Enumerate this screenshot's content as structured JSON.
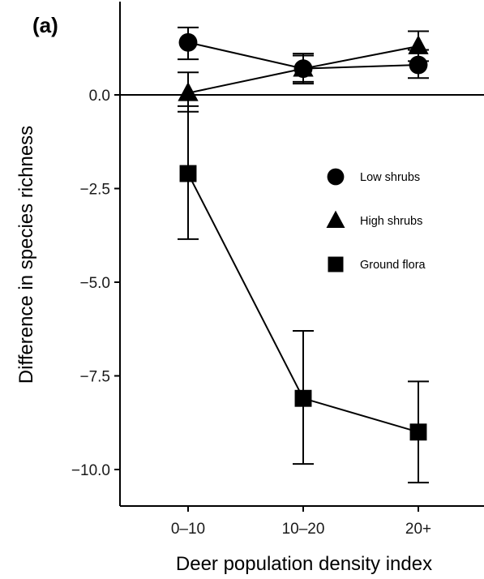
{
  "panel_label": "(a)",
  "chart_data": {
    "type": "line",
    "xlabel": "Deer population density index",
    "ylabel": "Difference in species richness",
    "categories": [
      "0–10",
      "10–20",
      "20+"
    ],
    "ylim": [
      -11.0,
      2.4
    ],
    "yticks": [
      0.0,
      -2.5,
      -5.0,
      -7.5,
      -10.0
    ],
    "ytick_labels": [
      "0.0",
      "−2.5",
      "−5.0",
      "−7.5",
      "−10.0"
    ],
    "reference_line_y": 0,
    "grid": false,
    "legend_position": "right",
    "series": [
      {
        "name": "Low shrubs",
        "marker": "circle",
        "values": [
          1.4,
          0.7,
          0.8
        ],
        "lower": [
          0.95,
          0.3,
          0.45
        ],
        "upper": [
          1.8,
          1.05,
          1.2
        ]
      },
      {
        "name": "High shrubs",
        "marker": "triangle",
        "values": [
          0.05,
          0.7,
          1.3
        ],
        "lower": [
          -0.45,
          0.35,
          0.9
        ],
        "upper": [
          0.6,
          1.1,
          1.7
        ]
      },
      {
        "name": "Ground flora",
        "marker": "square",
        "values": [
          -2.1,
          -8.1,
          -9.0
        ],
        "lower": [
          -3.85,
          -9.85,
          -10.35
        ],
        "upper": [
          -0.3,
          -6.3,
          -7.65
        ]
      }
    ]
  }
}
